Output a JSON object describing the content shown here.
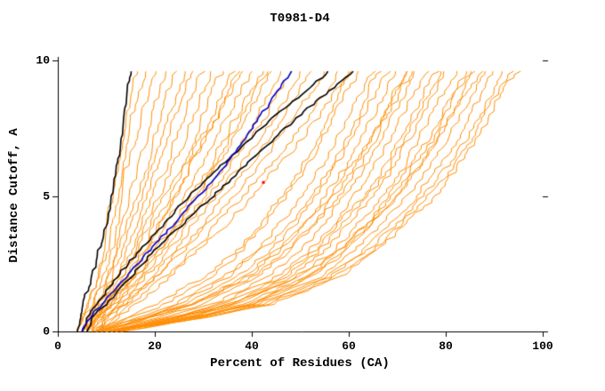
{
  "chart_data": {
    "type": "line",
    "title": "T0981-D4",
    "xlabel": "Percent of Residues (CA)",
    "ylabel": "Distance Cutoff, A",
    "xlim": [
      0,
      100
    ],
    "ylim": [
      0,
      10
    ],
    "x_ticks": [
      0,
      20,
      40,
      60,
      80,
      100
    ],
    "x_tick_labels": [
      "0",
      "20",
      "40",
      "60",
      "80",
      "100"
    ],
    "y_ticks": [
      0,
      5,
      10
    ],
    "y_tick_labels": [
      "0",
      "5",
      "10"
    ],
    "grid": false,
    "legend": "none",
    "colors": {
      "model": "#ff8c00",
      "reference": "#000000",
      "highlight": "#0000cc",
      "marker": "#ff0000",
      "axis": "#000000"
    },
    "cutoffs": [
      0,
      0.5,
      1,
      2,
      3,
      4,
      5,
      6,
      7,
      8,
      9,
      9.6
    ],
    "marker": {
      "x": 42.4,
      "y": 5.5
    },
    "series": [
      {
        "name": "model-01",
        "group": "model",
        "values": [
          4,
          5,
          6,
          8,
          9,
          10,
          11,
          12,
          13,
          14,
          15,
          16
        ]
      },
      {
        "name": "model-02",
        "group": "model",
        "values": [
          4,
          5,
          6,
          8,
          10,
          11,
          12,
          13,
          14,
          15,
          17,
          18
        ]
      },
      {
        "name": "model-03",
        "group": "model",
        "values": [
          5,
          6,
          7,
          9,
          11,
          12,
          13,
          14,
          16,
          17,
          19,
          20
        ]
      },
      {
        "name": "model-04",
        "group": "model",
        "values": [
          4,
          5,
          7,
          10,
          12,
          13,
          15,
          16,
          18,
          19,
          21,
          22
        ]
      },
      {
        "name": "model-05",
        "group": "model",
        "values": [
          5,
          6,
          8,
          10,
          12,
          14,
          16,
          18,
          20,
          21,
          23,
          24
        ]
      },
      {
        "name": "model-06",
        "group": "model",
        "values": [
          5,
          7,
          8,
          11,
          13,
          15,
          17,
          19,
          21,
          23,
          25,
          26
        ]
      },
      {
        "name": "model-07",
        "group": "model",
        "values": [
          6,
          7,
          9,
          12,
          14,
          16,
          18,
          20,
          22,
          24,
          26,
          28
        ]
      },
      {
        "name": "model-08",
        "group": "model",
        "values": [
          5,
          6,
          8,
          12,
          15,
          17,
          19,
          22,
          24,
          26,
          28,
          30
        ]
      },
      {
        "name": "model-09",
        "group": "model",
        "values": [
          6,
          8,
          10,
          13,
          16,
          18,
          21,
          23,
          26,
          28,
          30,
          32
        ]
      },
      {
        "name": "model-10",
        "group": "model",
        "values": [
          5,
          7,
          9,
          13,
          16,
          19,
          22,
          25,
          28,
          30,
          32,
          34
        ]
      },
      {
        "name": "model-11",
        "group": "model",
        "values": [
          6,
          8,
          10,
          14,
          17,
          20,
          23,
          26,
          29,
          32,
          34,
          36
        ]
      },
      {
        "name": "model-12",
        "group": "model",
        "values": [
          6,
          8,
          10,
          14,
          18,
          21,
          24,
          27,
          30,
          33,
          36,
          38
        ]
      },
      {
        "name": "model-13",
        "group": "model",
        "values": [
          7,
          9,
          11,
          15,
          19,
          22,
          26,
          29,
          32,
          35,
          38,
          40
        ]
      },
      {
        "name": "model-14",
        "group": "model",
        "values": [
          6,
          8,
          11,
          16,
          20,
          24,
          27,
          31,
          34,
          37,
          40,
          42
        ]
      },
      {
        "name": "model-15",
        "group": "model",
        "values": [
          7,
          9,
          12,
          17,
          21,
          25,
          29,
          32,
          36,
          39,
          42,
          44
        ]
      },
      {
        "name": "model-16",
        "group": "model",
        "values": [
          7,
          9,
          12,
          17,
          22,
          26,
          30,
          34,
          38,
          41,
          44,
          46
        ]
      },
      {
        "name": "model-17",
        "group": "model",
        "values": [
          8,
          10,
          13,
          18,
          23,
          27,
          31,
          35,
          39,
          43,
          46,
          48
        ]
      },
      {
        "name": "model-18",
        "group": "model",
        "values": [
          7,
          10,
          13,
          19,
          24,
          28,
          33,
          37,
          41,
          45,
          48,
          50
        ]
      },
      {
        "name": "model-19",
        "group": "model",
        "values": [
          8,
          10,
          14,
          20,
          25,
          30,
          34,
          39,
          43,
          47,
          50,
          52
        ]
      },
      {
        "name": "model-20",
        "group": "model",
        "values": [
          8,
          11,
          14,
          20,
          26,
          31,
          36,
          41,
          45,
          49,
          53,
          55
        ]
      },
      {
        "name": "model-21",
        "group": "model",
        "values": [
          9,
          11,
          15,
          22,
          28,
          33,
          38,
          43,
          48,
          52,
          56,
          58
        ]
      },
      {
        "name": "model-22",
        "group": "model",
        "values": [
          9,
          12,
          16,
          23,
          29,
          35,
          40,
          45,
          50,
          54,
          58,
          60
        ]
      },
      {
        "name": "model-23",
        "group": "model",
        "values": [
          7,
          15,
          22,
          32,
          38,
          43,
          47,
          51,
          54,
          57,
          60,
          62
        ]
      },
      {
        "name": "model-24",
        "group": "model",
        "values": [
          8,
          17,
          25,
          35,
          41,
          46,
          50,
          54,
          57,
          60,
          63,
          65
        ]
      },
      {
        "name": "model-25",
        "group": "model",
        "values": [
          8,
          18,
          26,
          37,
          44,
          49,
          53,
          57,
          60,
          63,
          66,
          68
        ]
      },
      {
        "name": "model-26",
        "group": "model",
        "values": [
          9,
          19,
          28,
          39,
          46,
          51,
          55,
          59,
          62,
          65,
          68,
          70
        ]
      },
      {
        "name": "model-27",
        "group": "model",
        "values": [
          9,
          20,
          30,
          41,
          48,
          53,
          57,
          61,
          64,
          67,
          70,
          72
        ]
      },
      {
        "name": "model-28",
        "group": "model",
        "values": [
          10,
          22,
          32,
          43,
          50,
          55,
          59,
          63,
          66,
          69,
          72,
          74
        ]
      },
      {
        "name": "model-29",
        "group": "model",
        "values": [
          10,
          23,
          33,
          45,
          52,
          57,
          61,
          65,
          68,
          71,
          74,
          76
        ]
      },
      {
        "name": "model-30",
        "group": "model",
        "values": [
          10,
          23,
          34,
          46,
          53,
          58,
          63,
          67,
          70,
          73,
          76,
          78
        ]
      },
      {
        "name": "model-31",
        "group": "model",
        "values": [
          11,
          25,
          36,
          48,
          55,
          60,
          65,
          69,
          72,
          75,
          78,
          80
        ]
      },
      {
        "name": "model-32",
        "group": "model",
        "values": [
          11,
          26,
          37,
          49,
          57,
          62,
          67,
          71,
          74,
          77,
          80,
          82
        ]
      },
      {
        "name": "model-33",
        "group": "model",
        "values": [
          11,
          26,
          38,
          51,
          58,
          64,
          68,
          72,
          76,
          79,
          82,
          84
        ]
      },
      {
        "name": "model-34",
        "group": "model",
        "values": [
          12,
          27,
          39,
          52,
          60,
          65,
          70,
          74,
          78,
          81,
          84,
          86
        ]
      },
      {
        "name": "model-35",
        "group": "model",
        "values": [
          12,
          28,
          40,
          54,
          61,
          67,
          72,
          76,
          80,
          83,
          86,
          88
        ]
      },
      {
        "name": "model-36",
        "group": "model",
        "values": [
          12,
          28,
          41,
          55,
          63,
          69,
          74,
          78,
          82,
          85,
          88,
          90
        ]
      },
      {
        "name": "model-37",
        "group": "model",
        "values": [
          13,
          29,
          42,
          56,
          64,
          70,
          75,
          80,
          84,
          87,
          90,
          92
        ]
      },
      {
        "name": "model-38",
        "group": "model",
        "values": [
          13,
          30,
          44,
          58,
          66,
          72,
          78,
          82,
          86,
          89,
          92,
          95
        ]
      },
      {
        "name": "model-39",
        "group": "model",
        "values": [
          8,
          14,
          20,
          30,
          37,
          42,
          46,
          50,
          53,
          56,
          58,
          60
        ]
      },
      {
        "name": "model-40",
        "group": "model",
        "values": [
          9,
          16,
          24,
          34,
          42,
          48,
          52,
          56,
          59,
          62,
          64,
          66
        ]
      },
      {
        "name": "model-41",
        "group": "model",
        "values": [
          10,
          19,
          28,
          40,
          47,
          53,
          58,
          62,
          65,
          68,
          71,
          73
        ]
      },
      {
        "name": "model-42",
        "group": "model",
        "values": [
          12,
          24,
          35,
          50,
          58,
          64,
          69,
          73,
          77,
          80,
          83,
          85
        ]
      },
      {
        "name": "model-43",
        "group": "model",
        "values": [
          10,
          24,
          36,
          47,
          54,
          59,
          64,
          68,
          71,
          74,
          77,
          79
        ]
      },
      {
        "name": "model-44",
        "group": "model",
        "values": [
          11,
          27,
          40,
          52,
          59,
          65,
          70,
          74,
          78,
          81,
          85,
          87
        ]
      },
      {
        "name": "model-45",
        "group": "model",
        "values": [
          9,
          18,
          27,
          38,
          45,
          51,
          56,
          60,
          64,
          67,
          70,
          72
        ]
      },
      {
        "name": "model-46",
        "group": "model",
        "values": [
          12,
          30,
          43,
          57,
          65,
          71,
          76,
          81,
          85,
          88,
          91,
          94
        ]
      },
      {
        "name": "model-47",
        "group": "model",
        "values": [
          5,
          7,
          10,
          15,
          18,
          21,
          24,
          27,
          30,
          33,
          35,
          37
        ]
      },
      {
        "name": "model-48",
        "group": "model",
        "values": [
          6,
          8,
          11,
          16,
          21,
          25,
          28,
          32,
          35,
          38,
          41,
          43
        ]
      },
      {
        "name": "reference-1",
        "group": "reference",
        "values": [
          4,
          4.5,
          5,
          7,
          8.5,
          10,
          11,
          12,
          13,
          13.5,
          14.2,
          15
        ]
      },
      {
        "name": "reference-2",
        "group": "reference",
        "values": [
          5,
          6,
          8,
          12,
          17,
          22,
          27,
          33,
          39,
          45,
          52,
          56
        ]
      },
      {
        "name": "reference-3",
        "group": "reference",
        "values": [
          6,
          7,
          10,
          15,
          20,
          26,
          32,
          38,
          44,
          50,
          57,
          61
        ]
      },
      {
        "name": "highlight-model",
        "group": "highlight",
        "values": [
          5,
          6.5,
          9,
          14,
          19,
          24,
          29,
          34,
          38,
          42,
          46,
          48
        ]
      }
    ]
  }
}
